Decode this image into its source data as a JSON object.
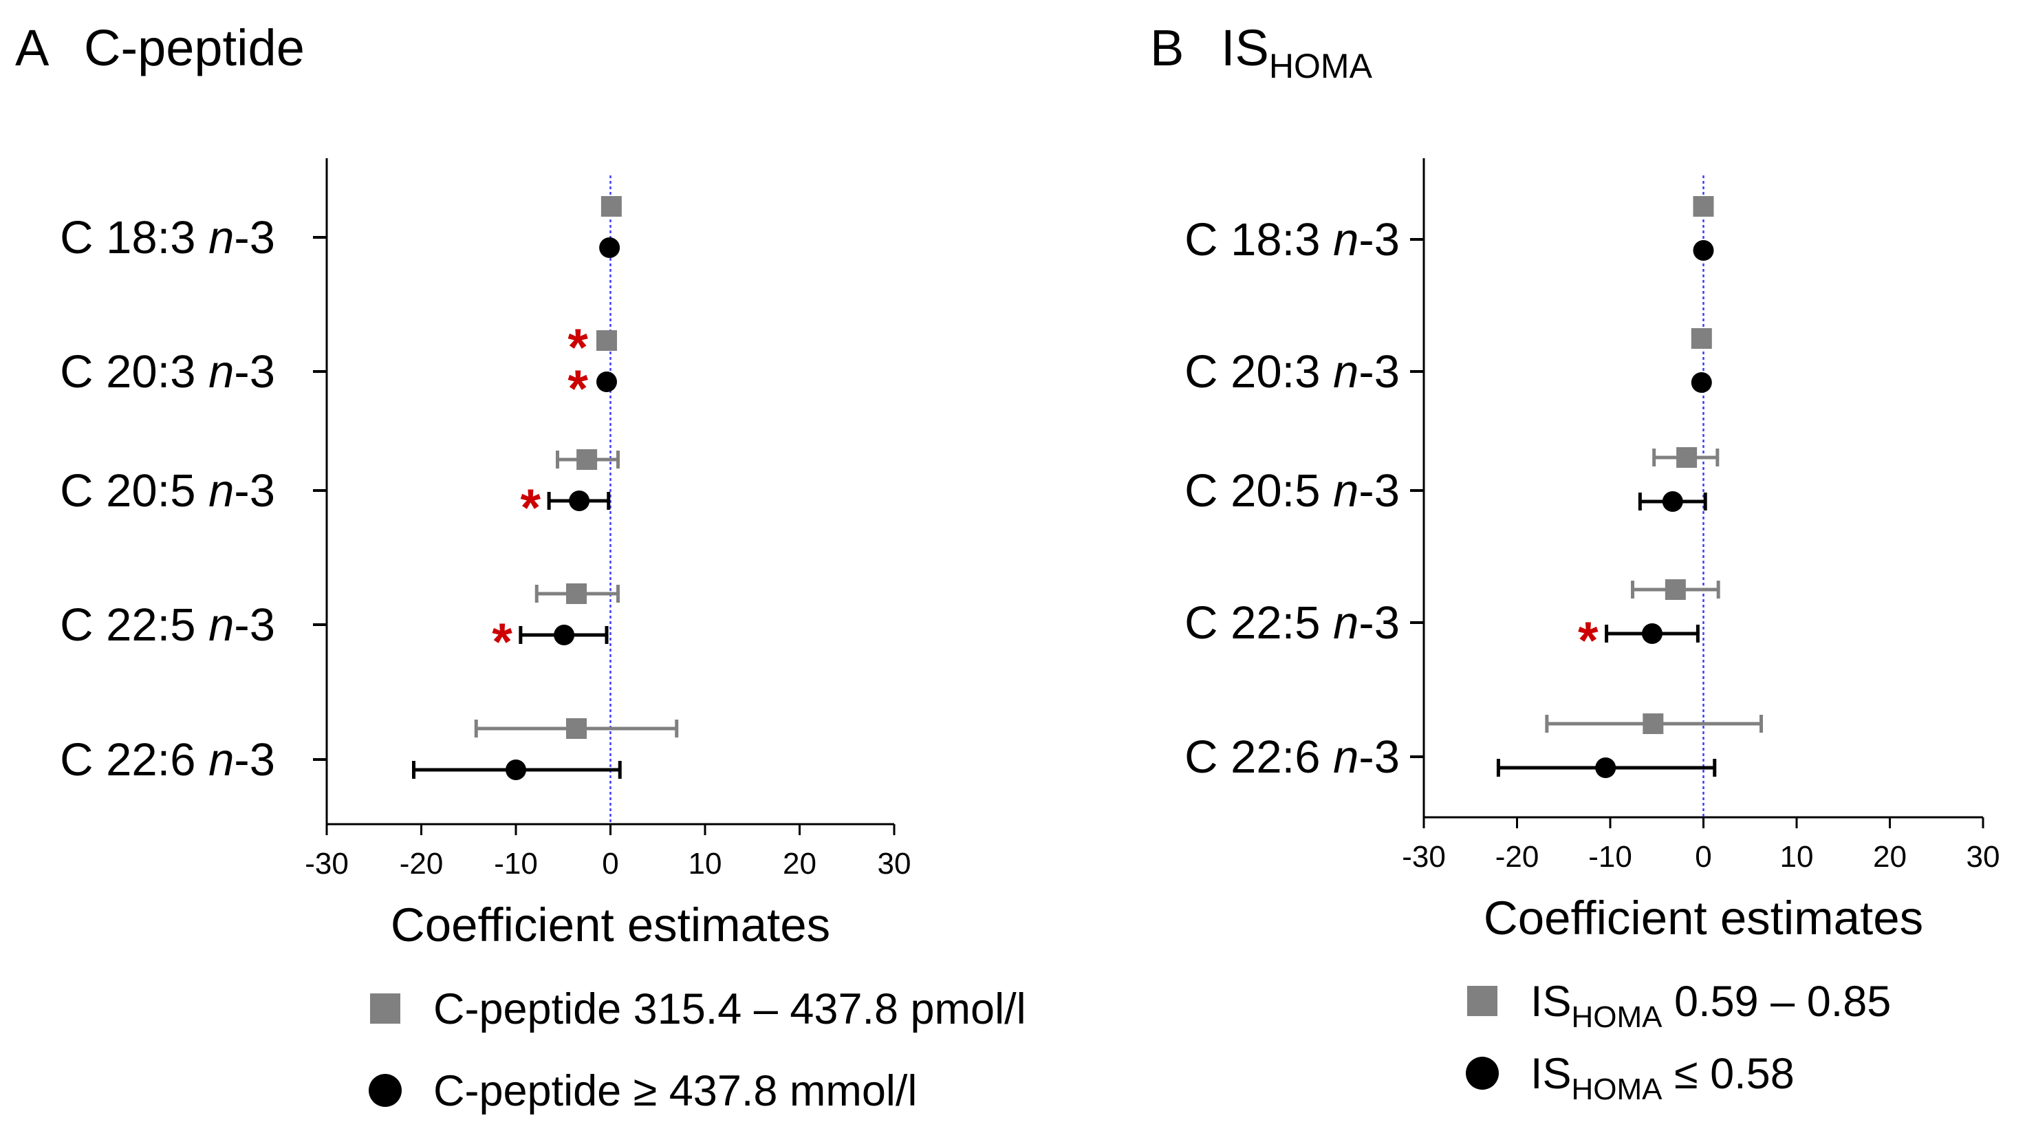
{
  "colors": {
    "group1": "#808080",
    "group2": "#000000",
    "zero_line": "#3a3aff",
    "significance": "#cc0000"
  },
  "chart_data": [
    {
      "type": "forest",
      "panel_letter": "A",
      "title": "C-peptide",
      "title_sub": "",
      "xlabel": "Coefficient estimates",
      "xlim": [
        -30,
        30
      ],
      "xticks": [
        -30,
        -20,
        -10,
        0,
        10,
        20,
        30
      ],
      "categories": [
        {
          "prefix": "C 18:3 ",
          "italic": "n",
          "suffix": "-3"
        },
        {
          "prefix": "C 20:3 ",
          "italic": "n",
          "suffix": "-3"
        },
        {
          "prefix": "C 20:5 ",
          "italic": "n",
          "suffix": "-3"
        },
        {
          "prefix": "C 22:5 ",
          "italic": "n",
          "suffix": "-3"
        },
        {
          "prefix": "C 22:6 ",
          "italic": "n",
          "suffix": "-3"
        }
      ],
      "significance_marker": "*",
      "series": [
        {
          "name": "C-peptide 315.4 – 437.8 pmol/l",
          "legend_main": "C-peptide 315.4 – 437.8 pmol/l",
          "legend_sub": "",
          "legend_tail": "",
          "marker": "square",
          "color": "#808080",
          "estimates": [
            0.1,
            -0.4,
            -2.5,
            -3.6,
            -3.6
          ],
          "lower": [
            null,
            null,
            -5.6,
            -7.8,
            -14.2
          ],
          "upper": [
            null,
            null,
            0.8,
            0.8,
            7.0
          ],
          "significant": [
            false,
            true,
            false,
            false,
            false
          ]
        },
        {
          "name": "C-peptide ≥ 437.8 mmol/l",
          "legend_main": "C-peptide ≥ 437.8 mmol/l",
          "legend_sub": "",
          "legend_tail": "",
          "marker": "circle",
          "color": "#000000",
          "estimates": [
            -0.1,
            -0.4,
            -3.3,
            -4.9,
            -10.0
          ],
          "lower": [
            null,
            null,
            -6.5,
            -9.5,
            -20.8
          ],
          "upper": [
            null,
            null,
            -0.2,
            -0.4,
            1.0
          ],
          "significant": [
            false,
            true,
            true,
            true,
            false
          ]
        }
      ]
    },
    {
      "type": "forest",
      "panel_letter": "B",
      "title": "IS",
      "title_sub": "HOMA",
      "xlabel": "Coefficient estimates",
      "xlim": [
        -30,
        30
      ],
      "xticks": [
        -30,
        -20,
        -10,
        0,
        10,
        20,
        30
      ],
      "categories": [
        {
          "prefix": "C 18:3 ",
          "italic": "n",
          "suffix": "-3"
        },
        {
          "prefix": "C 20:3 ",
          "italic": "n",
          "suffix": "-3"
        },
        {
          "prefix": "C 20:5 ",
          "italic": "n",
          "suffix": "-3"
        },
        {
          "prefix": "C 22:5 ",
          "italic": "n",
          "suffix": "-3"
        },
        {
          "prefix": "C 22:6 ",
          "italic": "n",
          "suffix": "-3"
        }
      ],
      "significance_marker": "*",
      "series": [
        {
          "name": "ISHOMA 0.59 – 0.85",
          "legend_main": "IS",
          "legend_sub": "HOMA",
          "legend_tail": " 0.59 – 0.85",
          "marker": "square",
          "color": "#808080",
          "estimates": [
            0.0,
            -0.2,
            -1.8,
            -3.0,
            -5.4
          ],
          "lower": [
            null,
            null,
            -5.3,
            -7.6,
            -16.8
          ],
          "upper": [
            null,
            null,
            1.5,
            1.6,
            6.2
          ],
          "significant": [
            false,
            false,
            false,
            false,
            false
          ]
        },
        {
          "name": "ISHOMA ≤ 0.58",
          "legend_main": "IS",
          "legend_sub": "HOMA",
          "legend_tail": " ≤ 0.58",
          "marker": "circle",
          "color": "#000000",
          "estimates": [
            0.0,
            -0.2,
            -3.3,
            -5.5,
            -10.5
          ],
          "lower": [
            null,
            null,
            -6.8,
            -10.4,
            -22.0
          ],
          "upper": [
            null,
            null,
            0.2,
            -0.6,
            1.2
          ],
          "significant": [
            false,
            false,
            false,
            true,
            false
          ]
        }
      ]
    }
  ]
}
